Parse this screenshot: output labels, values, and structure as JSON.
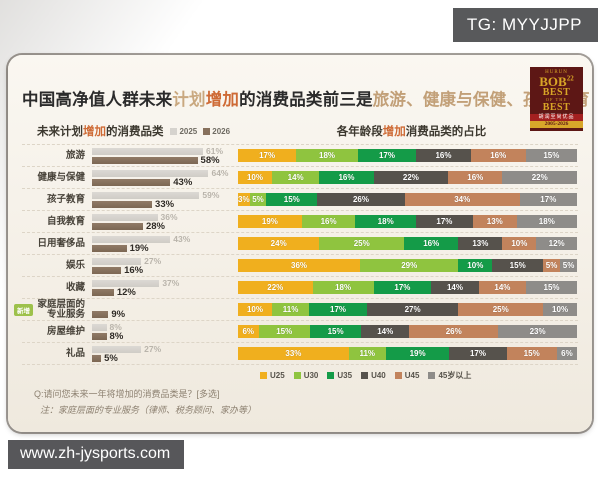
{
  "badge": {
    "text": "TG: MYYJJPP"
  },
  "footer": {
    "url": "www.zh-jysports.com"
  },
  "logo": {
    "brand": "HURUN",
    "bob": "BOB",
    "bob_num": "22",
    "best1": "BEST",
    "best2": "OF THE",
    "best3": "BEST",
    "band": "胡润至尚优品",
    "years": "2005-2026"
  },
  "title": {
    "seg1": "中国高净值人群未来",
    "seg2": "计划",
    "seg3": "增加",
    "seg4": "的消费品类前三是",
    "seg5": "旅游、健康与保健、孩子教育"
  },
  "left_chart": {
    "title_pre": "未来计划",
    "title_accent": "增加",
    "title_post": "的消费品类"
  },
  "right_chart": {
    "title_pre": "各年龄段",
    "title_accent": "增加",
    "title_post": "消费品类的占比"
  },
  "new_tag": "新增",
  "new_tag_row": 7,
  "notes": {
    "q": "Q:请问您未来一年将增加的消费品类是？[多选]",
    "note": "注：家庭层面的专业服务（律师、税务顾问、家办等）"
  },
  "colors": {
    "accent_orange": "#CE6A35",
    "accent_tan": "#C2A078",
    "bar_2025": "#D6D3CE",
    "bar_2026": "#87705C",
    "u25": "#F0AF1E",
    "u30": "#8FC43F",
    "u35": "#149B48",
    "u40": "#56524C",
    "u45": "#C2835C",
    "age45plus": "#8E8C89"
  },
  "chart_data": [
    {
      "type": "bar",
      "subtype": "horizontal-grouped",
      "title": "未来计划增加的消费品类",
      "unit": "%",
      "xlim": [
        0,
        70
      ],
      "categories": [
        "旅游",
        "健康与保健",
        "孩子教育",
        "自我教育",
        "日用奢侈品",
        "娱乐",
        "收藏",
        "家庭层面的专业服务",
        "房屋维护",
        "礼品"
      ],
      "series": [
        {
          "name": "2025",
          "color": "#D6D3CE",
          "values": [
            61,
            64,
            59,
            36,
            43,
            27,
            37,
            null,
            8,
            27
          ]
        },
        {
          "name": "2026",
          "color": "#87705C",
          "values": [
            58,
            43,
            33,
            28,
            19,
            16,
            12,
            9,
            8,
            5
          ]
        }
      ]
    },
    {
      "type": "bar",
      "subtype": "horizontal-stacked-100",
      "title": "各年龄段增加消费品类的占比",
      "unit": "%",
      "categories": [
        "旅游",
        "健康与保健",
        "孩子教育",
        "自我教育",
        "日用奢侈品",
        "娱乐",
        "收藏",
        "家庭层面的专业服务",
        "房屋维护",
        "礼品"
      ],
      "series": [
        {
          "name": "U25",
          "color": "#F0AF1E",
          "values": [
            17,
            10,
            3,
            19,
            24,
            36,
            22,
            10,
            6,
            33
          ]
        },
        {
          "name": "U30",
          "color": "#8FC43F",
          "values": [
            18,
            14,
            5,
            16,
            25,
            29,
            18,
            11,
            15,
            11
          ]
        },
        {
          "name": "U35",
          "color": "#149B48",
          "values": [
            17,
            16,
            15,
            18,
            16,
            10,
            17,
            17,
            15,
            19
          ]
        },
        {
          "name": "U40",
          "color": "#56524C",
          "values": [
            16,
            22,
            26,
            17,
            13,
            15,
            14,
            27,
            14,
            17
          ]
        },
        {
          "name": "U45",
          "color": "#C2835C",
          "values": [
            16,
            16,
            34,
            13,
            10,
            5,
            14,
            25,
            26,
            15
          ]
        },
        {
          "name": "45岁以上",
          "color": "#8E8C89",
          "values": [
            15,
            22,
            17,
            18,
            12,
            5,
            15,
            10,
            23,
            6
          ]
        }
      ]
    }
  ]
}
